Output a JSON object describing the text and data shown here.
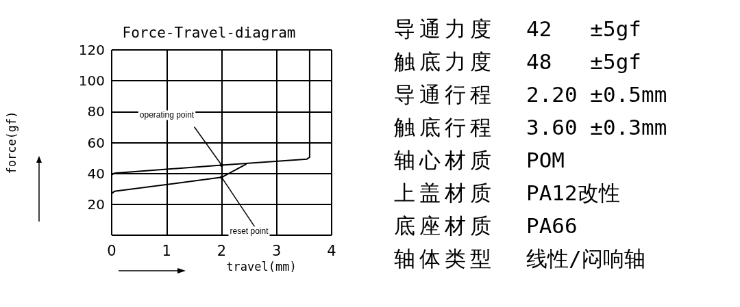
{
  "chart_data": [
    {
      "type": "line",
      "title": "Force-Travel-diagram",
      "xlabel": "travel(mm)",
      "ylabel": "force(gf)",
      "marker": "none",
      "line_style": "solid",
      "grid": true,
      "xlim": [
        0,
        4
      ],
      "xticks": [
        0,
        1,
        2,
        3,
        4
      ],
      "ylim": [
        0,
        120
      ],
      "yticks": [
        {
          "value": 0,
          "label": null
        },
        20,
        40,
        60,
        80,
        100,
        120
      ],
      "series": [
        {
          "color": "#000000",
          "x": [
            0,
            0.05,
            2,
            3.55,
            3.6,
            3.6
          ],
          "values": [
            39,
            40.2,
            45.4,
            49.3,
            50.5,
            120
          ]
        },
        {
          "color": "#000000",
          "x": [
            0,
            0.05,
            2,
            2.45
          ],
          "values": [
            27,
            28.4,
            37.5,
            46.1
          ]
        }
      ],
      "annotations": [
        {
          "text": "operating point",
          "x": 2,
          "y": 45.4
        },
        {
          "text": "reset point",
          "x": 2,
          "y": 37.5
        }
      ]
    },
    {
      "type": "other",
      "categories": [
        "导通力度",
        "触底力度",
        "导通行程",
        "触底行程",
        "轴心材质",
        "上盖材质",
        "底座材质",
        "轴体类型"
      ],
      "annotations": [
        "42   ±5gf",
        "48   ±5gf",
        "2.20 ±0.5mm",
        "3.60 ±0.3mm",
        "POM",
        "PA12改性",
        "PA66",
        "线性/闷响轴"
      ]
    }
  ]
}
